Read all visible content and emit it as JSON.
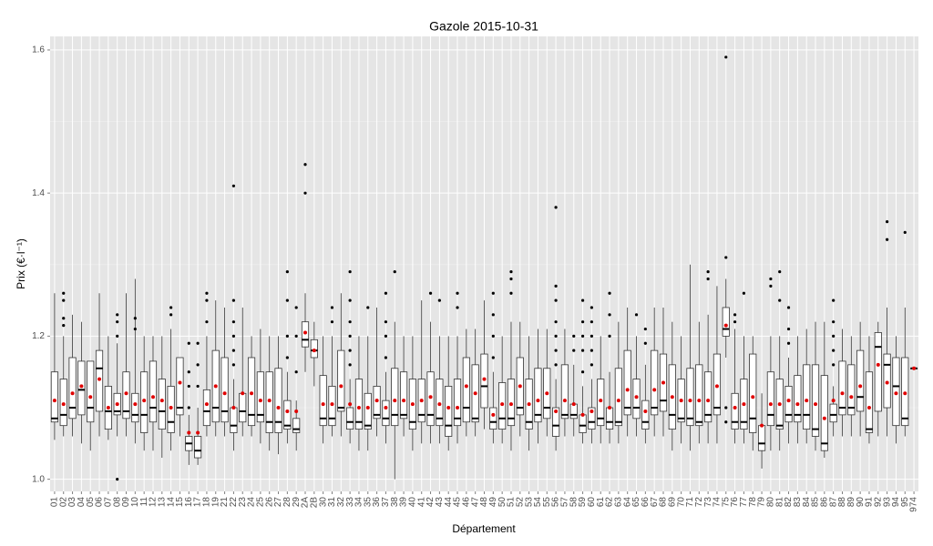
{
  "chart_data": {
    "type": "boxplot",
    "title": "Gazole 2015-10-31",
    "x_label": "Département",
    "y_label": "Prix (€·l⁻¹)",
    "categories": [
      "01",
      "02",
      "03",
      "04",
      "05",
      "06",
      "07",
      "08",
      "09",
      "10",
      "11",
      "12",
      "13",
      "14",
      "15",
      "16",
      "17",
      "18",
      "19",
      "21",
      "22",
      "23",
      "24",
      "25",
      "26",
      "27",
      "28",
      "29",
      "2A",
      "2B",
      "30",
      "31",
      "32",
      "33",
      "34",
      "35",
      "36",
      "37",
      "38",
      "39",
      "40",
      "41",
      "42",
      "43",
      "44",
      "45",
      "46",
      "47",
      "48",
      "49",
      "50",
      "51",
      "52",
      "53",
      "54",
      "55",
      "56",
      "57",
      "58",
      "59",
      "60",
      "61",
      "62",
      "63",
      "64",
      "65",
      "66",
      "67",
      "68",
      "69",
      "70",
      "71",
      "72",
      "73",
      "74",
      "75",
      "76",
      "77",
      "78",
      "79",
      "80",
      "81",
      "82",
      "83",
      "84",
      "85",
      "86",
      "87",
      "88",
      "89",
      "90",
      "91",
      "92",
      "93",
      "94",
      "95",
      "974"
    ],
    "whisker_low": [
      1.055,
      1.06,
      1.06,
      1.05,
      1.04,
      1.06,
      1.055,
      1.06,
      1.06,
      1.05,
      1.04,
      1.04,
      1.03,
      1.04,
      1.06,
      1.02,
      1.02,
      1.06,
      1.06,
      1.06,
      1.04,
      1.06,
      1.06,
      1.05,
      1.04,
      1.035,
      1.05,
      1.04,
      1.15,
      1.13,
      1.05,
      1.06,
      1.06,
      1.05,
      1.04,
      1.04,
      1.06,
      1.05,
      1.0,
      1.06,
      1.04,
      1.05,
      1.05,
      1.05,
      1.04,
      1.05,
      1.06,
      1.06,
      1.07,
      1.05,
      1.05,
      1.04,
      1.06,
      1.04,
      1.05,
      1.06,
      1.04,
      1.06,
      1.06,
      1.05,
      1.05,
      1.05,
      1.05,
      1.05,
      1.06,
      1.06,
      1.05,
      1.06,
      1.06,
      1.04,
      1.05,
      1.04,
      1.05,
      1.05,
      1.05,
      1.17,
      1.05,
      1.05,
      1.04,
      1.015,
      1.04,
      1.04,
      1.05,
      1.05,
      1.05,
      1.04,
      1.03,
      1.06,
      1.06,
      1.06,
      1.06,
      1.05,
      1.06,
      1.06,
      1.05,
      1.06,
      1.155
    ],
    "q1": [
      1.08,
      1.075,
      1.085,
      1.09,
      1.08,
      1.095,
      1.07,
      1.09,
      1.085,
      1.08,
      1.065,
      1.08,
      1.07,
      1.065,
      1.09,
      1.04,
      1.03,
      1.075,
      1.08,
      1.08,
      1.065,
      1.08,
      1.075,
      1.08,
      1.065,
      1.065,
      1.07,
      1.065,
      1.185,
      1.17,
      1.075,
      1.075,
      1.095,
      1.07,
      1.07,
      1.07,
      1.085,
      1.075,
      1.075,
      1.085,
      1.07,
      1.08,
      1.075,
      1.075,
      1.06,
      1.075,
      1.08,
      1.08,
      1.1,
      1.07,
      1.07,
      1.075,
      1.09,
      1.07,
      1.08,
      1.085,
      1.06,
      1.085,
      1.085,
      1.065,
      1.07,
      1.075,
      1.07,
      1.075,
      1.09,
      1.085,
      1.07,
      1.09,
      1.095,
      1.07,
      1.08,
      1.075,
      1.075,
      1.08,
      1.09,
      1.2,
      1.07,
      1.07,
      1.065,
      1.04,
      1.075,
      1.07,
      1.08,
      1.08,
      1.07,
      1.06,
      1.04,
      1.08,
      1.09,
      1.09,
      1.095,
      1.065,
      1.095,
      1.1,
      1.075,
      1.075,
      1.155
    ],
    "median": [
      1.085,
      1.09,
      1.1,
      1.125,
      1.1,
      1.155,
      1.095,
      1.095,
      1.095,
      1.09,
      1.09,
      1.1,
      1.095,
      1.08,
      1.1,
      1.05,
      1.04,
      1.095,
      1.1,
      1.095,
      1.075,
      1.095,
      1.09,
      1.09,
      1.08,
      1.08,
      1.075,
      1.07,
      1.195,
      1.18,
      1.085,
      1.085,
      1.1,
      1.08,
      1.08,
      1.075,
      1.09,
      1.085,
      1.09,
      1.09,
      1.08,
      1.09,
      1.09,
      1.085,
      1.075,
      1.085,
      1.1,
      1.085,
      1.13,
      1.08,
      1.085,
      1.085,
      1.1,
      1.08,
      1.09,
      1.1,
      1.075,
      1.09,
      1.09,
      1.075,
      1.08,
      1.085,
      1.08,
      1.08,
      1.1,
      1.1,
      1.08,
      1.1,
      1.11,
      1.09,
      1.085,
      1.085,
      1.08,
      1.09,
      1.1,
      1.21,
      1.08,
      1.08,
      1.085,
      1.05,
      1.09,
      1.075,
      1.09,
      1.09,
      1.09,
      1.07,
      1.05,
      1.09,
      1.1,
      1.1,
      1.115,
      1.07,
      1.185,
      1.16,
      1.13,
      1.085,
      1.155
    ],
    "q3": [
      1.15,
      1.14,
      1.17,
      1.165,
      1.165,
      1.18,
      1.13,
      1.12,
      1.15,
      1.12,
      1.15,
      1.165,
      1.14,
      1.13,
      1.17,
      1.06,
      1.06,
      1.125,
      1.18,
      1.17,
      1.1,
      1.12,
      1.17,
      1.15,
      1.15,
      1.155,
      1.11,
      1.085,
      1.22,
      1.195,
      1.145,
      1.13,
      1.18,
      1.1,
      1.14,
      1.12,
      1.13,
      1.11,
      1.155,
      1.15,
      1.14,
      1.14,
      1.15,
      1.14,
      1.13,
      1.14,
      1.17,
      1.16,
      1.175,
      1.1,
      1.135,
      1.14,
      1.17,
      1.14,
      1.155,
      1.155,
      1.1,
      1.16,
      1.105,
      1.09,
      1.1,
      1.14,
      1.1,
      1.155,
      1.18,
      1.14,
      1.11,
      1.18,
      1.175,
      1.16,
      1.14,
      1.155,
      1.16,
      1.15,
      1.175,
      1.24,
      1.12,
      1.14,
      1.175,
      1.075,
      1.15,
      1.14,
      1.13,
      1.145,
      1.16,
      1.16,
      1.145,
      1.105,
      1.165,
      1.16,
      1.18,
      1.15,
      1.205,
      1.175,
      1.17,
      1.17,
      1.155
    ],
    "whisker_high": [
      1.26,
      1.2,
      1.23,
      1.22,
      1.16,
      1.26,
      1.2,
      1.19,
      1.26,
      1.28,
      1.2,
      1.2,
      1.2,
      1.21,
      1.17,
      1.09,
      1.1,
      1.2,
      1.25,
      1.24,
      1.14,
      1.24,
      1.2,
      1.21,
      1.2,
      1.2,
      1.15,
      1.11,
      1.26,
      1.22,
      1.2,
      1.2,
      1.26,
      1.14,
      1.2,
      1.2,
      1.24,
      1.15,
      1.22,
      1.2,
      1.2,
      1.25,
      1.22,
      1.2,
      1.2,
      1.2,
      1.21,
      1.21,
      1.25,
      1.15,
      1.2,
      1.22,
      1.22,
      1.2,
      1.21,
      1.21,
      1.14,
      1.21,
      1.16,
      1.13,
      1.14,
      1.2,
      1.15,
      1.22,
      1.24,
      1.2,
      1.16,
      1.24,
      1.24,
      1.22,
      1.2,
      1.3,
      1.22,
      1.23,
      1.27,
      1.28,
      1.21,
      1.2,
      1.2,
      1.12,
      1.2,
      1.2,
      1.17,
      1.2,
      1.21,
      1.22,
      1.22,
      1.13,
      1.21,
      1.2,
      1.22,
      1.2,
      1.22,
      1.24,
      1.2,
      1.24,
      1.155
    ],
    "mean": [
      1.11,
      1.105,
      1.12,
      1.13,
      1.115,
      1.14,
      1.1,
      1.105,
      1.12,
      1.105,
      1.11,
      1.115,
      1.11,
      1.1,
      1.135,
      1.065,
      1.065,
      1.105,
      1.13,
      1.12,
      1.1,
      1.12,
      1.12,
      1.11,
      1.11,
      1.1,
      1.095,
      1.095,
      1.205,
      1.18,
      1.105,
      1.105,
      1.13,
      1.105,
      1.1,
      1.1,
      1.11,
      1.1,
      1.11,
      1.11,
      1.105,
      1.11,
      1.115,
      1.105,
      1.1,
      1.1,
      1.13,
      1.12,
      1.14,
      1.09,
      1.105,
      1.105,
      1.13,
      1.105,
      1.11,
      1.12,
      1.095,
      1.11,
      1.105,
      1.09,
      1.095,
      1.11,
      1.1,
      1.11,
      1.125,
      1.115,
      1.095,
      1.125,
      1.135,
      1.115,
      1.11,
      1.11,
      1.11,
      1.11,
      1.13,
      1.215,
      1.1,
      1.105,
      1.115,
      1.075,
      1.105,
      1.105,
      1.11,
      1.105,
      1.11,
      1.105,
      1.085,
      1.11,
      1.12,
      1.115,
      1.13,
      1.1,
      1.16,
      1.135,
      1.12,
      1.12,
      1.155
    ],
    "outliers": [
      [],
      [
        1.215,
        1.225,
        1.25,
        1.26
      ],
      [],
      [],
      [],
      [],
      [],
      [
        1.0,
        1.2,
        1.22,
        1.23
      ],
      [],
      [
        1.21,
        1.225
      ],
      [],
      [],
      [],
      [
        1.23,
        1.24
      ],
      [],
      [
        1.1,
        1.13,
        1.15,
        1.19
      ],
      [
        1.13,
        1.16,
        1.19
      ],
      [
        1.22,
        1.25,
        1.26
      ],
      [],
      [],
      [
        1.16,
        1.18,
        1.2,
        1.22,
        1.25,
        1.41
      ],
      [],
      [],
      [],
      [],
      [],
      [
        1.17,
        1.2,
        1.25,
        1.29
      ],
      [
        1.15,
        1.2,
        1.24
      ],
      [
        1.4,
        1.44
      ],
      [],
      [],
      [
        1.22,
        1.24
      ],
      [],
      [
        1.16,
        1.18,
        1.2,
        1.22,
        1.25,
        1.29
      ],
      [],
      [
        1.24
      ],
      [],
      [
        1.17,
        1.2,
        1.22,
        1.26
      ],
      [
        1.29
      ],
      [],
      [],
      [],
      [
        1.26
      ],
      [
        1.25
      ],
      [],
      [
        1.24,
        1.26
      ],
      [],
      [],
      [],
      [
        1.17,
        1.2,
        1.23,
        1.26
      ],
      [],
      [
        1.26,
        1.28,
        1.29
      ],
      [],
      [],
      [],
      [],
      [
        1.16,
        1.18,
        1.2,
        1.22,
        1.25,
        1.27,
        1.38
      ],
      [],
      [
        1.18,
        1.2
      ],
      [
        1.15,
        1.18,
        1.2,
        1.22,
        1.25
      ],
      [
        1.16,
        1.18,
        1.2,
        1.22,
        1.24
      ],
      [],
      [
        1.2,
        1.23,
        1.26
      ],
      [],
      [],
      [
        1.23
      ],
      [
        1.19,
        1.21
      ],
      [],
      [],
      [],
      [],
      [],
      [],
      [
        1.28,
        1.29
      ],
      [],
      [
        1.08,
        1.1,
        1.31,
        1.59
      ],
      [
        1.22,
        1.23
      ],
      [
        1.26
      ],
      [],
      [],
      [
        1.27,
        1.28
      ],
      [
        1.25,
        1.29
      ],
      [
        1.19,
        1.21,
        1.24
      ],
      [],
      [],
      [],
      [],
      [
        1.16,
        1.18,
        1.2,
        1.22,
        1.25
      ],
      [],
      [],
      [],
      [],
      [],
      [
        1.335,
        1.36
      ],
      [],
      [
        1.345
      ],
      []
    ],
    "mean_color": "#e00000",
    "outlier_color": "#000000",
    "box_color": "#333333",
    "ylim": [
      0.983,
      1.619
    ],
    "yticks": [
      {
        "value": 1,
        "label": "1.0"
      },
      1.2,
      1.4,
      1.6
    ],
    "y_minor_ticks": [
      1.1,
      1.3,
      1.5
    ],
    "grid": true
  }
}
